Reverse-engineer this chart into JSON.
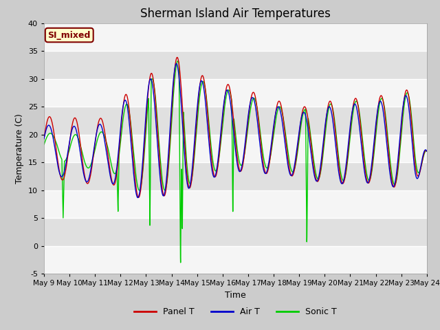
{
  "title": "Sherman Island Air Temperatures",
  "xlabel": "Time",
  "ylabel": "Temperature (C)",
  "ylim": [
    -5,
    40
  ],
  "xlim": [
    0,
    15
  ],
  "x_tick_labels": [
    "May 9",
    "May 10",
    "May 11",
    "May 12",
    "May 13",
    "May 14",
    "May 15",
    "May 16",
    "May 17",
    "May 18",
    "May 19",
    "May 20",
    "May 21",
    "May 22",
    "May 23",
    "May 24"
  ],
  "yticks": [
    -5,
    0,
    5,
    10,
    15,
    20,
    25,
    30,
    35,
    40
  ],
  "annotation_text": "SI_mixed",
  "annotation_color": "#800000",
  "annotation_bg": "#ffffcc",
  "panel_color": "#cc0000",
  "air_color": "#0000cc",
  "sonic_color": "#00cc00",
  "title_fontsize": 12,
  "label_fontsize": 9,
  "tick_fontsize": 8
}
